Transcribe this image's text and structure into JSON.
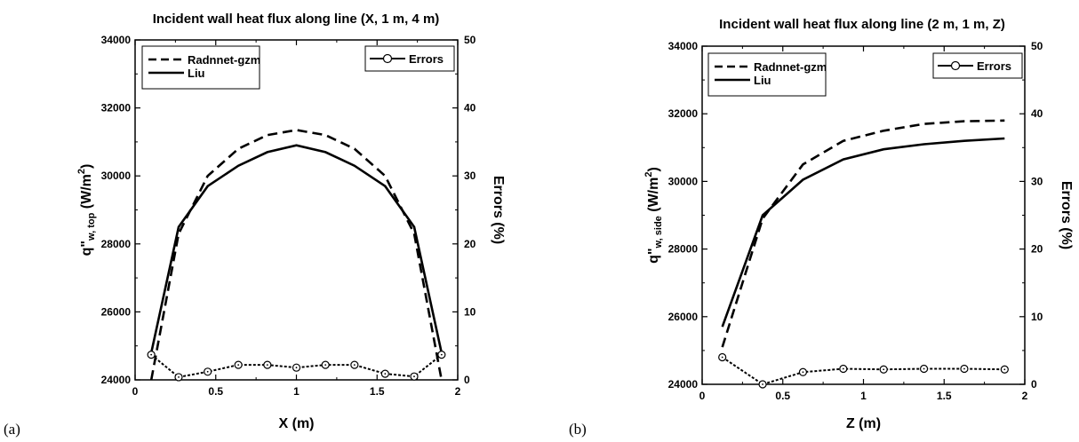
{
  "chart_data": [
    {
      "type": "line",
      "panel_label": "(a)",
      "title": "Incident wall heat flux along line (X, 1 m, 4 m)",
      "xlabel": "X (m)",
      "ylabel": "q\"",
      "ylabel_sub": "w, top",
      "ylabel_unit_pre": " (W/m",
      "ylabel_unit_sup": "2",
      "ylabel_unit_post": ")",
      "y2label": "Errors (%)",
      "xlim": [
        0,
        2
      ],
      "ylim": [
        24000,
        34000
      ],
      "y2lim": [
        0,
        50
      ],
      "xticks": [
        "0",
        "0.5",
        "1",
        "1.5",
        "2"
      ],
      "yticks": [
        "24000",
        "26000",
        "28000",
        "30000",
        "32000",
        "34000"
      ],
      "y2ticks": [
        "0",
        "10",
        "20",
        "30",
        "40",
        "50"
      ],
      "xtick_values": [
        0,
        0.5,
        1,
        1.5,
        2
      ],
      "ytick_values": [
        24000,
        26000,
        28000,
        30000,
        32000,
        34000
      ],
      "y2tick_values": [
        0,
        10,
        20,
        30,
        40,
        50
      ],
      "series": [
        {
          "name": "Radnnet-gzm",
          "axis": "left",
          "style": "dashed",
          "x": [
            0.1,
            0.27,
            0.45,
            0.64,
            0.82,
            1.0,
            1.18,
            1.36,
            1.55,
            1.73,
            1.9
          ],
          "y": [
            24000,
            28300,
            30000,
            30800,
            31200,
            31350,
            31200,
            30800,
            30000,
            28300,
            24000
          ]
        },
        {
          "name": "Liu",
          "axis": "left",
          "style": "solid",
          "x": [
            0.1,
            0.27,
            0.45,
            0.64,
            0.82,
            1.0,
            1.18,
            1.36,
            1.55,
            1.73,
            1.9
          ],
          "y": [
            24800,
            28500,
            29700,
            30300,
            30700,
            30900,
            30700,
            30300,
            29700,
            28500,
            24800
          ]
        },
        {
          "name": "Errors",
          "axis": "right",
          "style": "marker",
          "x": [
            0.1,
            0.27,
            0.45,
            0.64,
            0.82,
            1.0,
            1.18,
            1.36,
            1.55,
            1.73,
            1.9
          ],
          "y": [
            3.7,
            0.4,
            1.2,
            2.2,
            2.2,
            1.8,
            2.2,
            2.2,
            0.9,
            0.5,
            3.7
          ]
        }
      ]
    },
    {
      "type": "line",
      "panel_label": "(b)",
      "title": "Incident wall heat flux along line (2 m, 1 m, Z)",
      "xlabel": "Z (m)",
      "ylabel": "q\"",
      "ylabel_sub": "w, side",
      "ylabel_unit_pre": " (W/m",
      "ylabel_unit_sup": "2",
      "ylabel_unit_post": ")",
      "y2label": "Errors (%)",
      "xlim": [
        0,
        2
      ],
      "ylim": [
        24000,
        34000
      ],
      "y2lim": [
        0,
        50
      ],
      "xticks": [
        "0",
        "0.5",
        "1",
        "1.5",
        "2"
      ],
      "yticks": [
        "24000",
        "26000",
        "28000",
        "30000",
        "32000",
        "34000"
      ],
      "y2ticks": [
        "0",
        "10",
        "20",
        "30",
        "40",
        "50"
      ],
      "xtick_values": [
        0,
        0.5,
        1,
        1.5,
        2
      ],
      "ytick_values": [
        24000,
        26000,
        28000,
        30000,
        32000,
        34000
      ],
      "y2tick_values": [
        0,
        10,
        20,
        30,
        40,
        50
      ],
      "series": [
        {
          "name": "Radnnet-gzm",
          "axis": "left",
          "style": "dashed",
          "x": [
            0.125,
            0.375,
            0.625,
            0.875,
            1.125,
            1.375,
            1.625,
            1.875
          ],
          "y": [
            25100,
            28900,
            30500,
            31200,
            31500,
            31700,
            31780,
            31800
          ]
        },
        {
          "name": "Liu",
          "axis": "left",
          "style": "solid",
          "x": [
            0.125,
            0.375,
            0.625,
            0.875,
            1.125,
            1.375,
            1.625,
            1.875
          ],
          "y": [
            25700,
            29000,
            30050,
            30650,
            30950,
            31100,
            31200,
            31270
          ]
        },
        {
          "name": "Errors",
          "axis": "right",
          "style": "marker",
          "x": [
            0.125,
            0.375,
            0.625,
            0.875,
            1.125,
            1.375,
            1.625,
            1.875
          ],
          "y": [
            4.0,
            0.0,
            1.8,
            2.3,
            2.2,
            2.3,
            2.3,
            2.2
          ]
        }
      ]
    }
  ]
}
